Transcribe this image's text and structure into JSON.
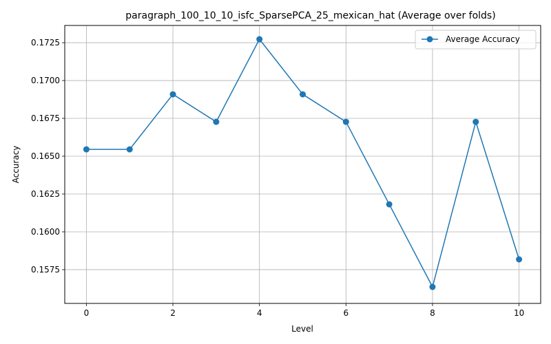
{
  "chart_data": {
    "type": "line",
    "title": "paragraph_100_10_10_isfc_SparsePCA_25_mexican_hat (Average over folds)",
    "xlabel": "Level",
    "ylabel": "Accuracy",
    "x": [
      0,
      1,
      2,
      3,
      4,
      5,
      6,
      7,
      8,
      9,
      10
    ],
    "series": [
      {
        "name": "Average Accuracy",
        "color": "#1f77b4",
        "marker": "circle",
        "values": [
          0.16545,
          0.16545,
          0.16909,
          0.16727,
          0.17273,
          0.16909,
          0.16727,
          0.16182,
          0.15636,
          0.16727,
          0.15818
        ]
      }
    ],
    "xlim": [
      -0.5,
      10.5
    ],
    "ylim": [
      0.15527,
      0.17364
    ],
    "xticks": [
      0,
      2,
      4,
      6,
      8,
      10
    ],
    "xtick_labels": [
      "0",
      "2",
      "4",
      "6",
      "8",
      "10"
    ],
    "yticks": [
      0.1575,
      0.16,
      0.1625,
      0.165,
      0.1675,
      0.17,
      0.1725
    ],
    "ytick_labels": [
      "0.1575",
      "0.1600",
      "0.1625",
      "0.1650",
      "0.1675",
      "0.1700",
      "0.1725"
    ],
    "grid": true,
    "legend_position": "top-right"
  }
}
